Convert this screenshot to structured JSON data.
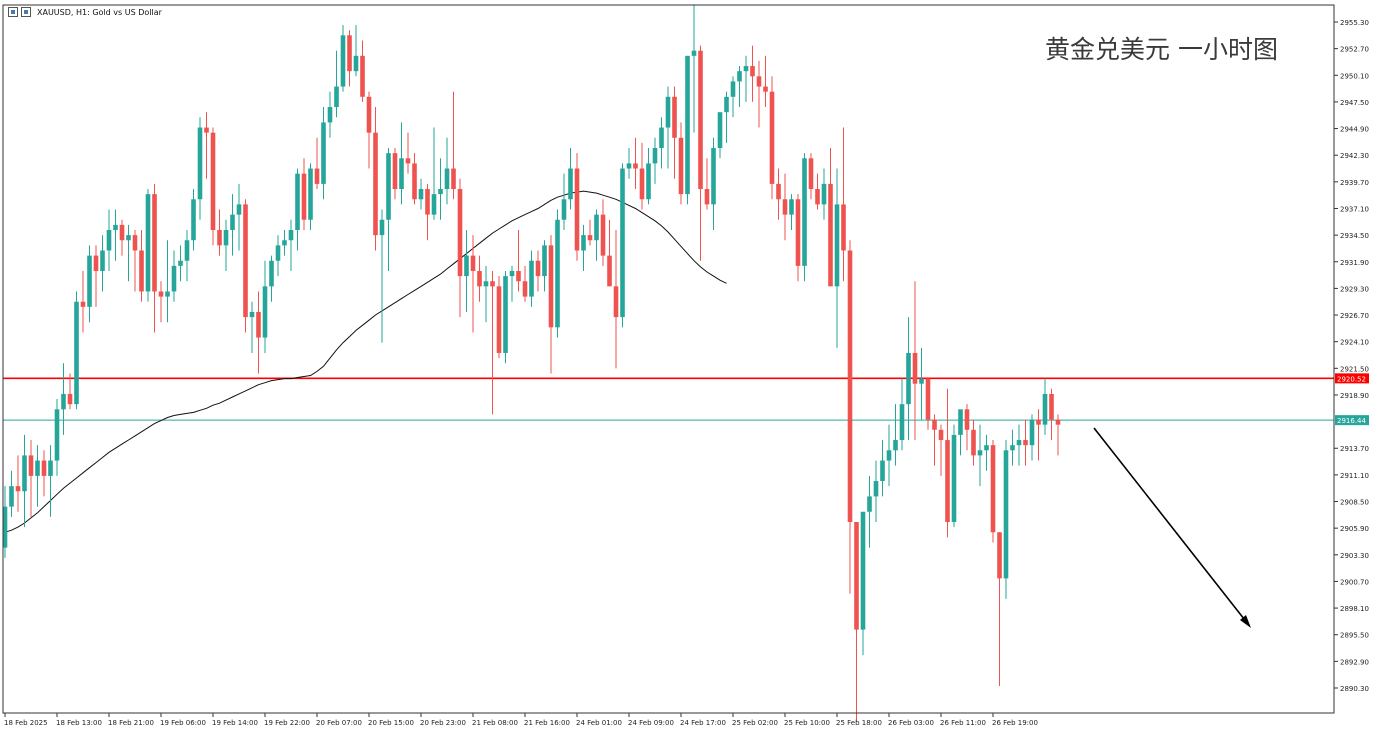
{
  "header": {
    "symbol_text": "XAUUSD, H1:  Gold vs US Dollar"
  },
  "overlay_title": "黄金兑美元 一小时图",
  "colors": {
    "bull": "#26a69a",
    "bear": "#ef5350",
    "ma": "#111111",
    "resistance": "#ff0000",
    "bid": "#26a69a",
    "grid_axis": "#333333",
    "background": "#ffffff"
  },
  "chart_data": {
    "type": "candlestick",
    "symbol": "XAUUSD",
    "timeframe": "H1",
    "ylim": [
      2888.0,
      2957.0
    ],
    "y_ticks": [
      "2955.30",
      "2952.70",
      "2950.10",
      "2947.50",
      "2944.90",
      "2942.30",
      "2939.70",
      "2937.10",
      "2934.50",
      "2931.90",
      "2929.30",
      "2926.70",
      "2924.10",
      "2921.50",
      "2918.90",
      "2913.70",
      "2911.10",
      "2908.50",
      "2905.90",
      "2903.30",
      "2900.70",
      "2898.10",
      "2895.50",
      "2892.90",
      "2890.30"
    ],
    "x_labels": [
      "18 Feb 2025",
      "18 Feb 13:00",
      "18 Feb 21:00",
      "19 Feb 06:00",
      "19 Feb 14:00",
      "19 Feb 22:00",
      "20 Feb 07:00",
      "20 Feb 15:00",
      "20 Feb 23:00",
      "21 Feb 08:00",
      "21 Feb 16:00",
      "24 Feb 01:00",
      "24 Feb 09:00",
      "24 Feb 17:00",
      "25 Feb 02:00",
      "25 Feb 10:00",
      "25 Feb 18:00",
      "26 Feb 03:00",
      "26 Feb 11:00",
      "26 Feb 19:00"
    ],
    "x_label_bars": [
      0,
      8,
      16,
      24,
      32,
      40,
      48,
      56,
      64,
      72,
      80,
      88,
      96,
      104,
      112,
      120,
      128,
      136,
      144,
      152
    ],
    "price_lines": [
      {
        "label": "2920.52",
        "value": 2920.52,
        "style": "resistance"
      },
      {
        "label": "2916.44",
        "value": 2916.44,
        "style": "bid"
      }
    ],
    "candles_ohlc": [
      [
        2904.0,
        2910.0,
        2903.0,
        2908.0
      ],
      [
        2908.0,
        2911.5,
        2907.0,
        2910.0
      ],
      [
        2910.0,
        2913.0,
        2907.5,
        2909.5
      ],
      [
        2909.5,
        2915.0,
        2906.0,
        2913.0
      ],
      [
        2913.0,
        2914.5,
        2907.0,
        2911.0
      ],
      [
        2911.0,
        2914.0,
        2908.0,
        2912.5
      ],
      [
        2912.5,
        2913.5,
        2909.0,
        2911.0
      ],
      [
        2911.0,
        2914.0,
        2907.0,
        2912.5
      ],
      [
        2912.5,
        2918.5,
        2911.0,
        2917.5
      ],
      [
        2917.5,
        2922.0,
        2915.0,
        2919.0
      ],
      [
        2919.0,
        2921.0,
        2917.5,
        2918.0
      ],
      [
        2918.0,
        2929.0,
        2917.5,
        2928.0
      ],
      [
        2928.0,
        2931.0,
        2925.0,
        2927.5
      ],
      [
        2927.5,
        2933.5,
        2926.0,
        2932.5
      ],
      [
        2932.5,
        2933.5,
        2927.5,
        2931.0
      ],
      [
        2931.0,
        2934.5,
        2929.0,
        2933.0
      ],
      [
        2933.0,
        2937.0,
        2931.0,
        2935.0
      ],
      [
        2935.0,
        2937.0,
        2932.0,
        2935.5
      ],
      [
        2935.5,
        2936.0,
        2932.5,
        2934.0
      ],
      [
        2934.0,
        2935.5,
        2930.0,
        2934.5
      ],
      [
        2934.5,
        2935.0,
        2929.0,
        2933.0
      ],
      [
        2933.0,
        2935.0,
        2928.0,
        2929.0
      ],
      [
        2929.0,
        2939.0,
        2928.0,
        2938.5
      ],
      [
        2938.5,
        2939.5,
        2925.0,
        2929.0
      ],
      [
        2929.0,
        2930.0,
        2926.0,
        2928.5
      ],
      [
        2928.5,
        2934.0,
        2926.0,
        2929.0
      ],
      [
        2929.0,
        2933.0,
        2928.0,
        2931.5
      ],
      [
        2931.5,
        2933.5,
        2930.0,
        2932.0
      ],
      [
        2932.0,
        2935.0,
        2930.0,
        2934.0
      ],
      [
        2934.0,
        2939.0,
        2933.0,
        2938.0
      ],
      [
        2938.0,
        2946.0,
        2936.0,
        2945.0
      ],
      [
        2945.0,
        2946.5,
        2940.0,
        2944.5
      ],
      [
        2944.5,
        2945.0,
        2933.5,
        2935.0
      ],
      [
        2935.0,
        2937.0,
        2932.5,
        2933.5
      ],
      [
        2933.5,
        2936.0,
        2931.0,
        2935.0
      ],
      [
        2935.0,
        2938.5,
        2932.5,
        2936.5
      ],
      [
        2936.5,
        2939.5,
        2933.0,
        2937.5
      ],
      [
        2937.5,
        2938.0,
        2925.0,
        2926.5
      ],
      [
        2926.5,
        2928.0,
        2923.0,
        2927.0
      ],
      [
        2927.0,
        2929.0,
        2921.0,
        2924.5
      ],
      [
        2924.5,
        2932.0,
        2923.0,
        2929.5
      ],
      [
        2929.5,
        2932.5,
        2928.0,
        2932.0
      ],
      [
        2932.0,
        2934.5,
        2930.5,
        2933.5
      ],
      [
        2933.5,
        2935.0,
        2932.5,
        2934.0
      ],
      [
        2934.0,
        2936.0,
        2931.0,
        2935.0
      ],
      [
        2935.0,
        2941.0,
        2933.0,
        2940.5
      ],
      [
        2940.5,
        2942.0,
        2935.0,
        2936.0
      ],
      [
        2936.0,
        2941.5,
        2935.0,
        2941.0
      ],
      [
        2941.0,
        2944.0,
        2939.0,
        2939.5
      ],
      [
        2939.5,
        2947.0,
        2938.0,
        2945.5
      ],
      [
        2945.5,
        2948.5,
        2944.0,
        2947.0
      ],
      [
        2947.0,
        2952.5,
        2946.0,
        2949.0
      ],
      [
        2949.0,
        2955.0,
        2948.5,
        2954.0
      ],
      [
        2954.0,
        2954.5,
        2949.0,
        2950.5
      ],
      [
        2950.5,
        2955.0,
        2950.0,
        2952.0
      ],
      [
        2952.0,
        2953.5,
        2947.5,
        2948.0
      ],
      [
        2948.0,
        2948.5,
        2941.0,
        2944.5
      ],
      [
        2944.5,
        2947.0,
        2933.0,
        2934.5
      ],
      [
        2934.5,
        2937.0,
        2924.0,
        2936.0
      ],
      [
        2936.0,
        2943.0,
        2931.0,
        2942.5
      ],
      [
        2942.5,
        2943.0,
        2938.0,
        2939.0
      ],
      [
        2939.0,
        2945.5,
        2937.5,
        2942.0
      ],
      [
        2942.0,
        2944.5,
        2940.5,
        2941.5
      ],
      [
        2941.5,
        2942.5,
        2937.5,
        2938.0
      ],
      [
        2938.0,
        2940.0,
        2937.0,
        2939.0
      ],
      [
        2939.0,
        2939.5,
        2934.0,
        2936.5
      ],
      [
        2936.5,
        2945.0,
        2936.0,
        2938.5
      ],
      [
        2938.5,
        2942.0,
        2936.0,
        2939.0
      ],
      [
        2939.0,
        2944.0,
        2937.5,
        2941.0
      ],
      [
        2941.0,
        2948.5,
        2938.0,
        2939.0
      ],
      [
        2939.0,
        2940.0,
        2926.5,
        2930.5
      ],
      [
        2930.5,
        2935.0,
        2927.0,
        2932.5
      ],
      [
        2932.5,
        2934.5,
        2925.0,
        2931.0
      ],
      [
        2931.0,
        2932.5,
        2928.0,
        2929.5
      ],
      [
        2929.5,
        2931.5,
        2926.0,
        2930.0
      ],
      [
        2930.0,
        2931.0,
        2917.0,
        2929.5
      ],
      [
        2929.5,
        2930.5,
        2922.5,
        2923.0
      ],
      [
        2923.0,
        2931.0,
        2922.0,
        2930.5
      ],
      [
        2930.5,
        2931.5,
        2928.0,
        2931.0
      ],
      [
        2931.0,
        2935.0,
        2929.0,
        2930.0
      ],
      [
        2930.0,
        2931.5,
        2928.0,
        2928.5
      ],
      [
        2928.5,
        2933.0,
        2927.5,
        2932.0
      ],
      [
        2932.0,
        2933.0,
        2929.0,
        2930.5
      ],
      [
        2930.5,
        2934.0,
        2929.0,
        2933.5
      ],
      [
        2933.5,
        2934.5,
        2921.0,
        2925.5
      ],
      [
        2925.5,
        2937.0,
        2924.5,
        2936.0
      ],
      [
        2936.0,
        2940.5,
        2935.0,
        2938.0
      ],
      [
        2938.0,
        2943.0,
        2937.0,
        2941.0
      ],
      [
        2941.0,
        2942.5,
        2932.0,
        2933.0
      ],
      [
        2933.0,
        2935.5,
        2931.0,
        2934.5
      ],
      [
        2934.5,
        2936.0,
        2933.5,
        2934.0
      ],
      [
        2934.0,
        2937.0,
        2932.0,
        2936.5
      ],
      [
        2936.5,
        2938.0,
        2931.5,
        2932.5
      ],
      [
        2932.5,
        2936.0,
        2931.0,
        2929.5
      ],
      [
        2929.5,
        2935.0,
        2921.5,
        2926.5
      ],
      [
        2926.5,
        2941.5,
        2925.5,
        2941.0
      ],
      [
        2941.0,
        2943.0,
        2940.0,
        2941.5
      ],
      [
        2941.5,
        2944.0,
        2939.0,
        2941.0
      ],
      [
        2941.0,
        2943.5,
        2937.0,
        2938.0
      ],
      [
        2938.0,
        2943.0,
        2937.5,
        2941.5
      ],
      [
        2941.5,
        2944.0,
        2939.5,
        2943.0
      ],
      [
        2943.0,
        2946.0,
        2941.0,
        2945.0
      ],
      [
        2945.0,
        2949.0,
        2941.0,
        2948.0
      ],
      [
        2948.0,
        2949.0,
        2940.0,
        2944.0
      ],
      [
        2944.0,
        2945.5,
        2937.5,
        2938.5
      ],
      [
        2938.5,
        2951.5,
        2937.5,
        2952.0
      ],
      [
        2952.0,
        2957.0,
        2944.5,
        2952.5
      ],
      [
        2952.5,
        2953.0,
        2932.0,
        2939.0
      ],
      [
        2939.0,
        2942.0,
        2937.0,
        2937.5
      ],
      [
        2937.5,
        2944.0,
        2935.0,
        2943.0
      ],
      [
        2943.0,
        2946.0,
        2942.0,
        2946.5
      ],
      [
        2946.5,
        2948.5,
        2943.5,
        2948.0
      ],
      [
        2948.0,
        2950.0,
        2946.0,
        2949.5
      ],
      [
        2949.5,
        2951.0,
        2947.0,
        2950.5
      ],
      [
        2950.5,
        2952.0,
        2947.5,
        2951.0
      ],
      [
        2951.0,
        2953.0,
        2947.5,
        2950.0
      ],
      [
        2950.0,
        2951.5,
        2945.0,
        2949.0
      ],
      [
        2949.0,
        2952.0,
        2947.0,
        2948.5
      ],
      [
        2948.5,
        2950.0,
        2938.0,
        2939.5
      ],
      [
        2939.5,
        2941.0,
        2936.0,
        2938.0
      ],
      [
        2938.0,
        2940.5,
        2934.0,
        2936.5
      ],
      [
        2936.5,
        2938.5,
        2935.0,
        2938.0
      ],
      [
        2938.0,
        2938.5,
        2930.0,
        2931.5
      ],
      [
        2931.5,
        2942.5,
        2930.0,
        2942.0
      ],
      [
        2942.0,
        2942.5,
        2938.0,
        2939.0
      ],
      [
        2939.0,
        2940.5,
        2937.0,
        2937.5
      ],
      [
        2937.5,
        2941.0,
        2936.0,
        2939.5
      ],
      [
        2939.5,
        2943.0,
        2932.0,
        2929.5
      ],
      [
        2929.5,
        2941.0,
        2923.5,
        2937.5
      ],
      [
        2937.5,
        2945.0,
        2930.0,
        2933.0
      ],
      [
        2933.0,
        2934.0,
        2899.5,
        2906.5
      ],
      [
        2906.5,
        2906.5,
        2887.0,
        2896.0
      ],
      [
        2896.0,
        2906.0,
        2893.5,
        2907.5
      ],
      [
        2907.5,
        2911.0,
        2904.0,
        2909.0
      ],
      [
        2909.0,
        2912.5,
        2906.5,
        2910.5
      ],
      [
        2910.5,
        2914.5,
        2909.0,
        2912.5
      ],
      [
        2912.5,
        2916.0,
        2910.0,
        2913.5
      ],
      [
        2913.5,
        2918.0,
        2912.0,
        2914.5
      ],
      [
        2914.5,
        2920.5,
        2913.5,
        2918.0
      ],
      [
        2918.0,
        2926.5,
        2914.5,
        2923.0
      ],
      [
        2923.0,
        2930.0,
        2914.5,
        2920.0
      ],
      [
        2920.0,
        2923.5,
        2916.5,
        2920.5
      ],
      [
        2920.5,
        2920.5,
        2915.5,
        2916.5
      ],
      [
        2916.5,
        2917.0,
        2912.0,
        2915.5
      ],
      [
        2915.5,
        2916.0,
        2911.0,
        2914.5
      ],
      [
        2914.5,
        2919.5,
        2905.0,
        2906.5
      ],
      [
        2906.5,
        2916.0,
        2906.0,
        2915.0
      ],
      [
        2915.0,
        2917.0,
        2913.0,
        2917.5
      ],
      [
        2917.5,
        2918.0,
        2913.5,
        2915.5
      ],
      [
        2915.5,
        2916.5,
        2912.0,
        2913.0
      ],
      [
        2913.0,
        2916.0,
        2910.0,
        2913.5
      ],
      [
        2913.5,
        2915.0,
        2911.5,
        2914.0
      ],
      [
        2914.0,
        2914.5,
        2904.5,
        2905.5
      ],
      [
        2905.5,
        2905.5,
        2890.5,
        2901.0
      ],
      [
        2901.0,
        2914.5,
        2899.0,
        2913.5
      ],
      [
        2913.5,
        2915.5,
        2912.0,
        2914.0
      ],
      [
        2914.0,
        2916.0,
        2912.0,
        2914.5
      ],
      [
        2914.5,
        2916.5,
        2912.0,
        2914.0
      ],
      [
        2914.0,
        2917.0,
        2912.5,
        2916.5
      ],
      [
        2916.5,
        2917.5,
        2912.5,
        2916.0
      ],
      [
        2916.0,
        2920.5,
        2915.0,
        2919.0
      ],
      [
        2919.0,
        2919.5,
        2914.5,
        2916.5
      ],
      [
        2916.5,
        2917.0,
        2913.0,
        2916.0
      ]
    ],
    "ma_values": [
      2905.5,
      2905.7,
      2906.0,
      2906.4,
      2906.9,
      2907.4,
      2908.0,
      2908.6,
      2909.2,
      2909.8,
      2910.3,
      2910.8,
      2911.3,
      2911.8,
      2912.3,
      2912.8,
      2913.3,
      2913.7,
      2914.1,
      2914.5,
      2914.9,
      2915.3,
      2915.7,
      2916.1,
      2916.4,
      2916.7,
      2916.9,
      2917.0,
      2917.1,
      2917.2,
      2917.4,
      2917.6,
      2917.9,
      2918.1,
      2918.4,
      2918.7,
      2919.0,
      2919.3,
      2919.6,
      2919.9,
      2920.1,
      2920.3,
      2920.4,
      2920.5,
      2920.5,
      2920.6,
      2920.7,
      2920.8,
      2921.2,
      2921.7,
      2922.5,
      2923.3,
      2924.0,
      2924.6,
      2925.2,
      2925.7,
      2926.2,
      2926.7,
      2927.1,
      2927.5,
      2927.9,
      2928.3,
      2928.7,
      2929.1,
      2929.5,
      2929.9,
      2930.3,
      2930.7,
      2931.2,
      2931.7,
      2932.2,
      2932.7,
      2933.2,
      2933.7,
      2934.2,
      2934.7,
      2935.1,
      2935.5,
      2935.9,
      2936.2,
      2936.5,
      2936.8,
      2937.1,
      2937.5,
      2937.9,
      2938.2,
      2938.4,
      2938.6,
      2938.7,
      2938.8,
      2938.7,
      2938.6,
      2938.4,
      2938.2,
      2938.0,
      2937.7,
      2937.4,
      2937.1,
      2936.7,
      2936.3,
      2935.9,
      2935.4,
      2934.8,
      2934.1,
      2933.4,
      2932.7,
      2932.0,
      2931.4,
      2930.9,
      2930.5,
      2930.1,
      2929.8
    ]
  }
}
